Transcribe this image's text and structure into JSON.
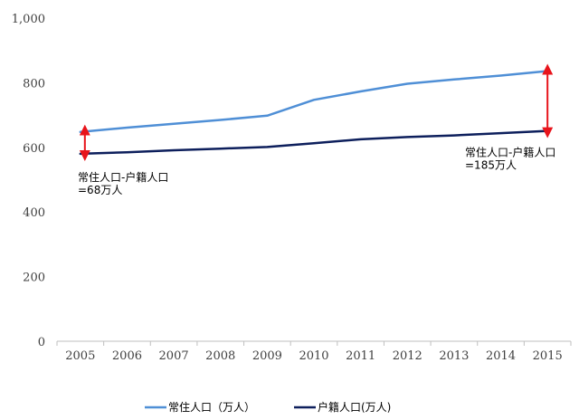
{
  "chart_data": {
    "type": "line",
    "categories": [
      "2005",
      "2006",
      "2007",
      "2008",
      "2009",
      "2010",
      "2011",
      "2012",
      "2013",
      "2014",
      "2015"
    ],
    "series": [
      {
        "name": "常住人口（万人）",
        "color": "#4f8fd6",
        "values": [
          648,
          661,
          673,
          685,
          698,
          747,
          773,
          797,
          810,
          822,
          836
        ]
      },
      {
        "name": "户籍人口(万人)",
        "color": "#0d1f5c",
        "values": [
          580,
          585,
          591,
          596,
          601,
          613,
          625,
          632,
          637,
          644,
          651
        ]
      }
    ],
    "ylim": [
      0,
      1000
    ],
    "yticks": [
      "0",
      "200",
      "400",
      "600",
      "800",
      "1,000"
    ],
    "grid": false,
    "legend": "bottom",
    "annotations": [
      {
        "line1": "常住人口-户籍人口",
        "line2": "=68万人",
        "category": "2005"
      },
      {
        "line1": "常住人口-户籍人口",
        "line2": "=185万人",
        "category": "2015"
      }
    ],
    "annotation_arrow_color": "#e8141b"
  }
}
